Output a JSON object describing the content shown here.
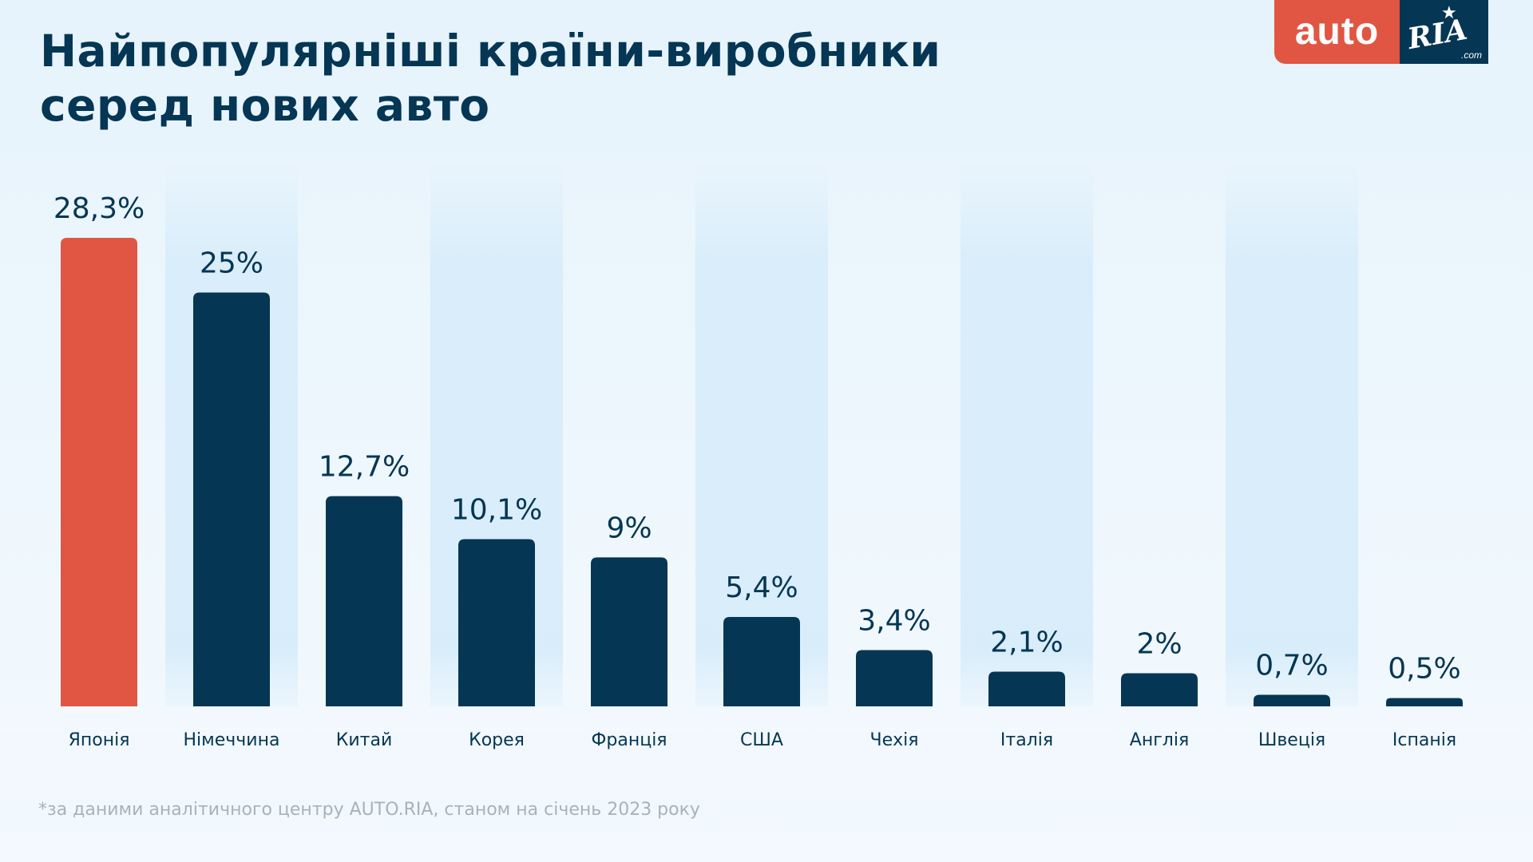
{
  "title": {
    "line1": "Найпопулярніші країни-виробники",
    "line2": "серед нових авто"
  },
  "logo": {
    "auto_text": "auto",
    "ria_text": "RIA",
    "com_text": ".com",
    "auto_color": "#e05642",
    "ria_color": "#053654"
  },
  "footnote": "*за даними аналітичного центру AUTO.RIA, станом на січень 2023 року",
  "colors": {
    "highlight": "#e05642",
    "bar": "#053654",
    "text": "#053654",
    "band": "#d6ecfa"
  },
  "chart_data": {
    "type": "bar",
    "categories": [
      "Японія",
      "Німеччина",
      "Китай",
      "Корея",
      "Франція",
      "США",
      "Чехія",
      "Італія",
      "Англія",
      "Швеція",
      "Іспанія"
    ],
    "values": [
      28.3,
      25,
      12.7,
      10.1,
      9,
      5.4,
      3.4,
      2.1,
      2,
      0.7,
      0.5
    ],
    "value_labels": [
      "28,3%",
      "25%",
      "12,7%",
      "10,1%",
      "9%",
      "5,4%",
      "3,4%",
      "2,1%",
      "2%",
      "0,7%",
      "0,5%"
    ],
    "unit": "%",
    "highlight_index": 0,
    "ylim": [
      0,
      28.3
    ],
    "title": "",
    "xlabel": "",
    "ylabel": "",
    "grid": false,
    "legend": "none"
  }
}
